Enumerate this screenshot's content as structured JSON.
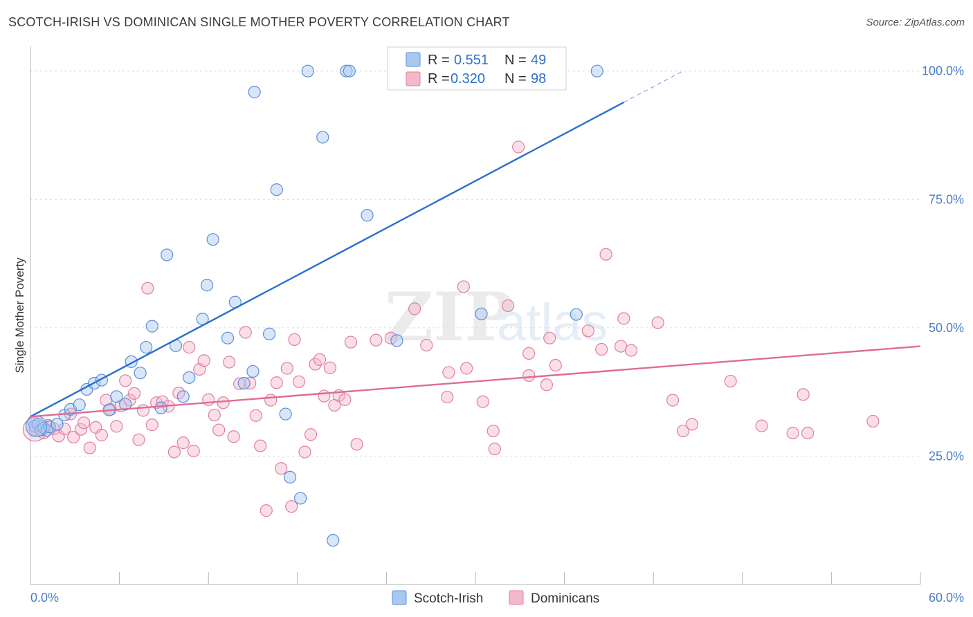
{
  "header": {
    "title": "SCOTCH-IRISH VS DOMINICAN SINGLE MOTHER POVERTY CORRELATION CHART",
    "source": "Source: ZipAtlas.com"
  },
  "watermark": {
    "zip": "ZIP",
    "atlas": "atlas"
  },
  "colors": {
    "blue_fill": "#a9c8f0",
    "blue_stroke": "#5b8fd6",
    "blue_line": "#2b6fcc",
    "pink_fill": "#f5b8cb",
    "pink_stroke": "#e07f9f",
    "pink_line": "#e06b94",
    "tick_text": "#4a7fc8",
    "grid": "#dcdcdc"
  },
  "legend": {
    "r_label": "R =",
    "n_label": "N =",
    "rows": [
      {
        "r": "0.551",
        "n": "49"
      },
      {
        "r": "0.320",
        "n": "98"
      }
    ]
  },
  "chart_data": {
    "type": "scatter",
    "title": "SCOTCH-IRISH VS DOMINICAN SINGLE MOTHER POVERTY CORRELATION CHART",
    "xlabel": "",
    "ylabel": "Single Mother Poverty",
    "xlim": [
      0,
      60
    ],
    "ylim": [
      0,
      104
    ],
    "x_tick_labels": [
      "0.0%",
      "60.0%"
    ],
    "y_ticks": [
      25,
      50,
      75,
      100
    ],
    "y_tick_labels": [
      "25.0%",
      "50.0%",
      "75.0%",
      "100.0%"
    ],
    "grid": "horizontal dashed",
    "legend_position": "top-center",
    "series": [
      {
        "name": "Scotch-Irish",
        "r": 0.551,
        "n": 49,
        "trend": {
          "x0": 0,
          "y0": 32.7,
          "x1": 40,
          "y1": 93.9,
          "dashed_to_x": 44,
          "dashed_to_y": 100
        },
        "points": [
          [
            0.2,
            31.7
          ],
          [
            0.3,
            30.8
          ],
          [
            0.5,
            31.2
          ],
          [
            0.7,
            30.1
          ],
          [
            0.9,
            30.5
          ],
          [
            1.1,
            30.0
          ],
          [
            1.3,
            30.7
          ],
          [
            1.8,
            31.2
          ],
          [
            2.3,
            33.0
          ],
          [
            2.7,
            34.1
          ],
          [
            3.3,
            35.0
          ],
          [
            3.8,
            38.0
          ],
          [
            4.3,
            39.2
          ],
          [
            4.8,
            39.8
          ],
          [
            5.3,
            34.0
          ],
          [
            5.8,
            36.6
          ],
          [
            6.4,
            35.1
          ],
          [
            6.8,
            43.4
          ],
          [
            7.4,
            41.2
          ],
          [
            7.8,
            46.2
          ],
          [
            8.2,
            50.3
          ],
          [
            8.8,
            34.4
          ],
          [
            9.2,
            64.2
          ],
          [
            9.8,
            46.5
          ],
          [
            10.3,
            36.6
          ],
          [
            10.7,
            40.3
          ],
          [
            11.6,
            51.7
          ],
          [
            11.9,
            58.3
          ],
          [
            12.3,
            67.2
          ],
          [
            13.3,
            48.0
          ],
          [
            13.8,
            55.0
          ],
          [
            14.4,
            39.2
          ],
          [
            15.0,
            41.5
          ],
          [
            15.1,
            95.9
          ],
          [
            16.1,
            48.8
          ],
          [
            16.6,
            76.9
          ],
          [
            17.2,
            33.2
          ],
          [
            17.5,
            20.9
          ],
          [
            18.2,
            16.8
          ],
          [
            18.7,
            100.0
          ],
          [
            19.7,
            87.1
          ],
          [
            20.4,
            8.6
          ],
          [
            21.3,
            100.0
          ],
          [
            21.5,
            100.0
          ],
          [
            22.7,
            71.9
          ],
          [
            24.7,
            47.5
          ],
          [
            30.4,
            52.7
          ],
          [
            36.8,
            52.6
          ],
          [
            38.2,
            100.0
          ]
        ]
      },
      {
        "name": "Dominicans",
        "r": 0.32,
        "n": 98,
        "trend": {
          "x0": 0,
          "y0": 32.7,
          "x1": 60,
          "y1": 46.4
        },
        "points": [
          [
            0.3,
            30.2
          ],
          [
            0.7,
            30.8
          ],
          [
            0.9,
            29.5
          ],
          [
            1.2,
            31.0
          ],
          [
            1.6,
            30.3
          ],
          [
            1.9,
            28.9
          ],
          [
            2.3,
            30.3
          ],
          [
            2.7,
            33.2
          ],
          [
            2.9,
            28.7
          ],
          [
            3.4,
            30.2
          ],
          [
            3.6,
            31.5
          ],
          [
            4.0,
            26.6
          ],
          [
            4.4,
            30.6
          ],
          [
            4.8,
            29.1
          ],
          [
            5.1,
            35.9
          ],
          [
            5.4,
            34.1
          ],
          [
            5.8,
            30.8
          ],
          [
            6.1,
            34.8
          ],
          [
            6.4,
            39.7
          ],
          [
            6.7,
            35.9
          ],
          [
            7.0,
            37.2
          ],
          [
            7.3,
            28.2
          ],
          [
            7.6,
            33.9
          ],
          [
            7.9,
            57.7
          ],
          [
            8.2,
            31.1
          ],
          [
            8.5,
            35.4
          ],
          [
            8.9,
            35.6
          ],
          [
            9.3,
            34.7
          ],
          [
            9.7,
            25.8
          ],
          [
            10.0,
            37.3
          ],
          [
            10.3,
            27.6
          ],
          [
            10.7,
            46.2
          ],
          [
            11.0,
            26.0
          ],
          [
            11.4,
            41.9
          ],
          [
            11.7,
            43.6
          ],
          [
            12.0,
            36.0
          ],
          [
            12.4,
            33.0
          ],
          [
            12.7,
            30.1
          ],
          [
            13.0,
            35.4
          ],
          [
            13.4,
            43.3
          ],
          [
            13.7,
            28.8
          ],
          [
            14.1,
            39.1
          ],
          [
            14.5,
            49.1
          ],
          [
            14.8,
            39.2
          ],
          [
            15.2,
            32.9
          ],
          [
            15.5,
            27.0
          ],
          [
            15.9,
            14.4
          ],
          [
            16.2,
            35.9
          ],
          [
            16.6,
            39.3
          ],
          [
            16.9,
            22.6
          ],
          [
            17.3,
            42.1
          ],
          [
            17.6,
            15.2
          ],
          [
            17.8,
            47.7
          ],
          [
            18.1,
            39.5
          ],
          [
            18.5,
            25.8
          ],
          [
            18.9,
            29.2
          ],
          [
            19.2,
            42.9
          ],
          [
            19.5,
            43.8
          ],
          [
            19.8,
            36.7
          ],
          [
            20.2,
            42.2
          ],
          [
            20.5,
            34.9
          ],
          [
            20.8,
            36.8
          ],
          [
            21.2,
            36.0
          ],
          [
            21.6,
            47.2
          ],
          [
            22.0,
            27.3
          ],
          [
            23.3,
            47.6
          ],
          [
            24.3,
            48.0
          ],
          [
            25.9,
            53.7
          ],
          [
            26.7,
            46.6
          ],
          [
            28.1,
            36.5
          ],
          [
            28.2,
            41.3
          ],
          [
            29.2,
            58.0
          ],
          [
            29.4,
            42.1
          ],
          [
            30.5,
            35.6
          ],
          [
            31.2,
            29.9
          ],
          [
            31.3,
            26.4
          ],
          [
            32.2,
            54.3
          ],
          [
            32.9,
            85.2
          ],
          [
            33.6,
            40.7
          ],
          [
            33.6,
            45.0
          ],
          [
            34.8,
            38.9
          ],
          [
            35.0,
            48.0
          ],
          [
            35.4,
            42.7
          ],
          [
            37.6,
            49.4
          ],
          [
            38.5,
            45.8
          ],
          [
            38.8,
            64.3
          ],
          [
            39.8,
            46.4
          ],
          [
            40.0,
            51.8
          ],
          [
            40.5,
            45.6
          ],
          [
            42.3,
            51.0
          ],
          [
            43.3,
            35.9
          ],
          [
            44.0,
            29.9
          ],
          [
            44.6,
            31.2
          ],
          [
            47.2,
            39.6
          ],
          [
            49.3,
            30.9
          ],
          [
            51.4,
            29.5
          ],
          [
            52.1,
            37.0
          ],
          [
            52.4,
            29.5
          ],
          [
            56.8,
            31.8
          ]
        ]
      }
    ]
  },
  "bottom_legend": [
    "Scotch-Irish",
    "Dominicans"
  ]
}
